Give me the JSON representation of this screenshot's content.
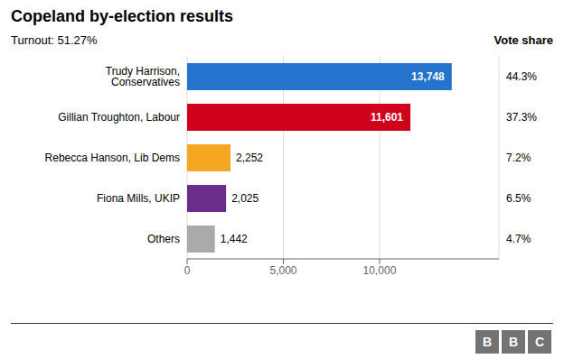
{
  "chart_data": {
    "type": "bar",
    "orientation": "horizontal",
    "title": "Copeland by-election results",
    "subtitle": "Turnout: 51.27%",
    "categories": [
      "Trudy Harrison, Conservatives",
      "Gillian Troughton, Labour",
      "Rebecca Hanson, Lib Dems",
      "Fiona Mills, UKIP",
      "Others"
    ],
    "values": [
      13748,
      11601,
      2252,
      2025,
      1442
    ],
    "value_labels": [
      "13,748",
      "11,601",
      "2,252",
      "2,025",
      "1,442"
    ],
    "colors": [
      "#2473CC",
      "#D0021B",
      "#F5A623",
      "#6B2D8B",
      "#AAAAAA"
    ],
    "data_labels": true,
    "xlim": [
      0,
      16200
    ],
    "xticks": [
      0,
      {
        "value": 5000,
        "label": "5,000"
      },
      {
        "value": 10000,
        "label": "10,000"
      }
    ],
    "grid": true,
    "vote_share_label": "Vote share",
    "vote_shares": [
      {
        "value": 44.3,
        "label": "44.3%"
      },
      {
        "value": 37.3,
        "label": "37.3%"
      },
      {
        "value": 7.2,
        "label": "7.2%"
      },
      {
        "value": 6.5,
        "label": "6.5%"
      },
      {
        "value": 4.7,
        "label": "4.7%"
      }
    ],
    "logo": "BBC"
  }
}
